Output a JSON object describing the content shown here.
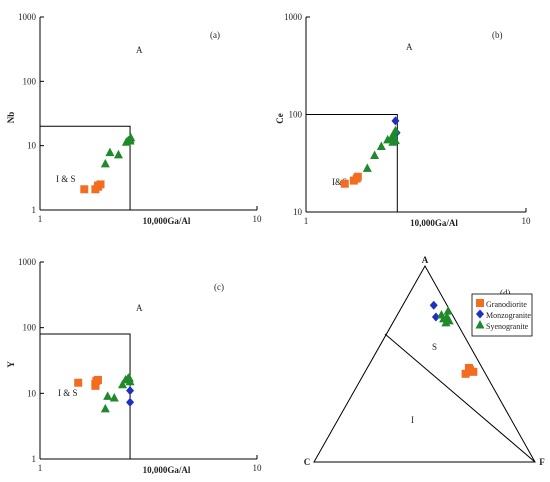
{
  "colors": {
    "granodiorite": "#f26d21",
    "monzogranite": "#1f2fbf",
    "syenogranite": "#1f8a2c"
  },
  "markers": {
    "granodiorite": "square",
    "monzogranite": "diamond",
    "syenogranite": "triangle"
  },
  "chart_data": [
    {
      "type": "scatter",
      "panel_label": "(a)",
      "xlabel": "10,000Ga/Al",
      "ylabel": "Nb",
      "xscale": "log",
      "yscale": "log",
      "xlim": [
        1,
        10
      ],
      "ylim": [
        1,
        1000
      ],
      "xticks": [
        "1",
        "10"
      ],
      "yticks": [
        "1",
        "10",
        "100",
        "1000"
      ],
      "fields": [
        {
          "label": "A"
        },
        {
          "label": "I & S"
        }
      ],
      "field_boundary": {
        "x": 2.6,
        "y": 20
      },
      "series": [
        {
          "name": "Granodiorite",
          "points": [
            [
              1.6,
              2.1
            ],
            [
              1.8,
              2.1
            ],
            [
              1.85,
              2.3
            ],
            [
              1.9,
              2.5
            ],
            [
              1.85,
              2.4
            ]
          ]
        },
        {
          "name": "Syenogranite",
          "points": [
            [
              2.0,
              5.2
            ],
            [
              2.1,
              7.8
            ],
            [
              2.3,
              7.2
            ],
            [
              2.5,
              11.3
            ],
            [
              2.55,
              12.0
            ],
            [
              2.6,
              12.4
            ],
            [
              2.62,
              13.3
            ],
            [
              2.6,
              11.8
            ]
          ]
        }
      ]
    },
    {
      "type": "scatter",
      "panel_label": "(b)",
      "xlabel": "10,000Ga/Al",
      "ylabel": "Ce",
      "xscale": "log",
      "yscale": "log",
      "xlim": [
        1,
        10
      ],
      "ylim": [
        10,
        1000
      ],
      "xticks": [
        "1",
        "10"
      ],
      "yticks": [
        "10",
        "100",
        "1000"
      ],
      "fields": [
        {
          "label": "A"
        },
        {
          "label": "I&S"
        }
      ],
      "field_boundary": {
        "x": 2.6,
        "y": 100
      },
      "series": [
        {
          "name": "Granodiorite",
          "points": [
            [
              1.5,
              19.5
            ],
            [
              1.65,
              21
            ],
            [
              1.7,
              22
            ],
            [
              1.72,
              23
            ]
          ]
        },
        {
          "name": "Monzogranite",
          "points": [
            [
              2.55,
              86
            ],
            [
              2.58,
              65
            ]
          ]
        },
        {
          "name": "Syenogranite",
          "points": [
            [
              1.9,
              28
            ],
            [
              2.05,
              38
            ],
            [
              2.2,
              47
            ],
            [
              2.35,
              55
            ],
            [
              2.45,
              58
            ],
            [
              2.5,
              63
            ],
            [
              2.55,
              68
            ],
            [
              2.55,
              54
            ],
            [
              2.48,
              52
            ]
          ]
        }
      ]
    },
    {
      "type": "scatter",
      "panel_label": "(c)",
      "xlabel": "10,000Ga/Al",
      "ylabel": "Y",
      "xscale": "log",
      "yscale": "log",
      "xlim": [
        1,
        10
      ],
      "ylim": [
        1,
        1000
      ],
      "xticks": [
        "1",
        "10"
      ],
      "yticks": [
        "1",
        "10",
        "100",
        "1000"
      ],
      "fields": [
        {
          "label": "A"
        },
        {
          "label": "I & S"
        }
      ],
      "field_boundary": {
        "x": 2.6,
        "y": 80
      },
      "series": [
        {
          "name": "Granodiorite",
          "points": [
            [
              1.5,
              14.5
            ],
            [
              1.8,
              14
            ],
            [
              1.82,
              15.5
            ],
            [
              1.85,
              16
            ],
            [
              1.8,
              13
            ]
          ]
        },
        {
          "name": "Monzogranite",
          "points": [
            [
              2.6,
              11
            ],
            [
              2.6,
              7.3
            ]
          ]
        },
        {
          "name": "Syenogranite",
          "points": [
            [
              2.0,
              5.8
            ],
            [
              2.05,
              9
            ],
            [
              2.2,
              8.5
            ],
            [
              2.4,
              13.5
            ],
            [
              2.48,
              16
            ],
            [
              2.55,
              17
            ],
            [
              2.6,
              15
            ],
            [
              2.58,
              17
            ]
          ]
        }
      ]
    },
    {
      "type": "ternary",
      "panel_label": "(d)",
      "vertices": [
        "A",
        "C",
        "F"
      ],
      "fields": [
        {
          "label": "S"
        },
        {
          "label": "I"
        }
      ],
      "legend": [
        "Granodiorite",
        "Monzogranite",
        "Syenogranite"
      ],
      "legend_position": "top-right",
      "series": [
        {
          "name": "Granodiorite",
          "points": [
            [
              0.46,
              0.49
            ],
            [
              0.47,
              0.47
            ],
            [
              0.45,
              0.46
            ],
            [
              0.48,
              0.46
            ]
          ]
        },
        {
          "name": "Monzogranite",
          "points": [
            [
              0.74,
              0.18
            ],
            [
              0.8,
              0.14
            ]
          ]
        },
        {
          "name": "Syenogranite",
          "points": [
            [
              0.74,
              0.23
            ],
            [
              0.77,
              0.22
            ],
            [
              0.72,
              0.25
            ],
            [
              0.75,
              0.2
            ],
            [
              0.71,
              0.24
            ],
            [
              0.73,
              0.22
            ]
          ]
        }
      ]
    }
  ]
}
